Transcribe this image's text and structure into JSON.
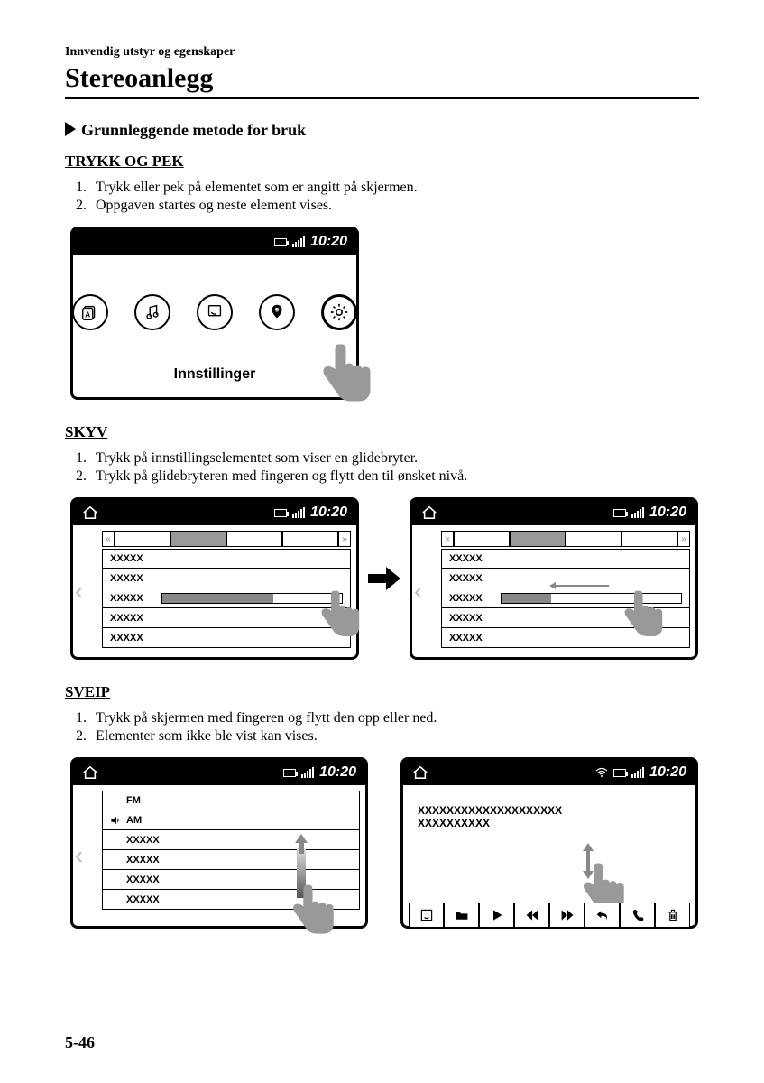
{
  "header": {
    "chapter": "Innvendig utstyr og egenskaper",
    "title": "Stereoanlegg"
  },
  "section_title": "Grunnleggende metode for bruk",
  "trykk": {
    "heading": "TRYKK OG PEK",
    "steps": [
      "Trykk eller pek på elementet som er angitt på skjermen.",
      "Oppgaven startes og neste element vises."
    ],
    "screen": {
      "time": "10:20",
      "label": "Innstillinger"
    }
  },
  "skyv": {
    "heading": "SKYV",
    "steps": [
      "Trykk på innstillingselementet som viser en glidebryter.",
      "Trykk på glidebryteren med fingeren og flytt den til ønsket nivå."
    ],
    "screen": {
      "time": "10:20",
      "rows": [
        "XXXXX",
        "XXXXX",
        "XXXXX",
        "XXXXX",
        "XXXXX"
      ],
      "slider_before_pct": 62,
      "slider_after_pct": 28
    }
  },
  "sveip": {
    "heading": "SVEIP",
    "steps": [
      "Trykk på skjermen med fingeren og flytt den opp eller ned.",
      "Elementer som ikke ble vist kan vises."
    ],
    "left": {
      "time": "10:20",
      "rows": [
        "FM",
        "AM",
        "XXXXX",
        "XXXXX",
        "XXXXX",
        "XXXXX"
      ]
    },
    "right": {
      "time": "10:20",
      "line1": "XXXXXXXXXXXXXXXXXXXX",
      "line2": "XXXXXXXXXX"
    }
  },
  "page_number": "5-46",
  "colors": {
    "black": "#000000",
    "white": "#ffffff",
    "gray_finger": "#999999",
    "gray_slider": "#888888",
    "gray_chev": "#bbbbbb"
  }
}
